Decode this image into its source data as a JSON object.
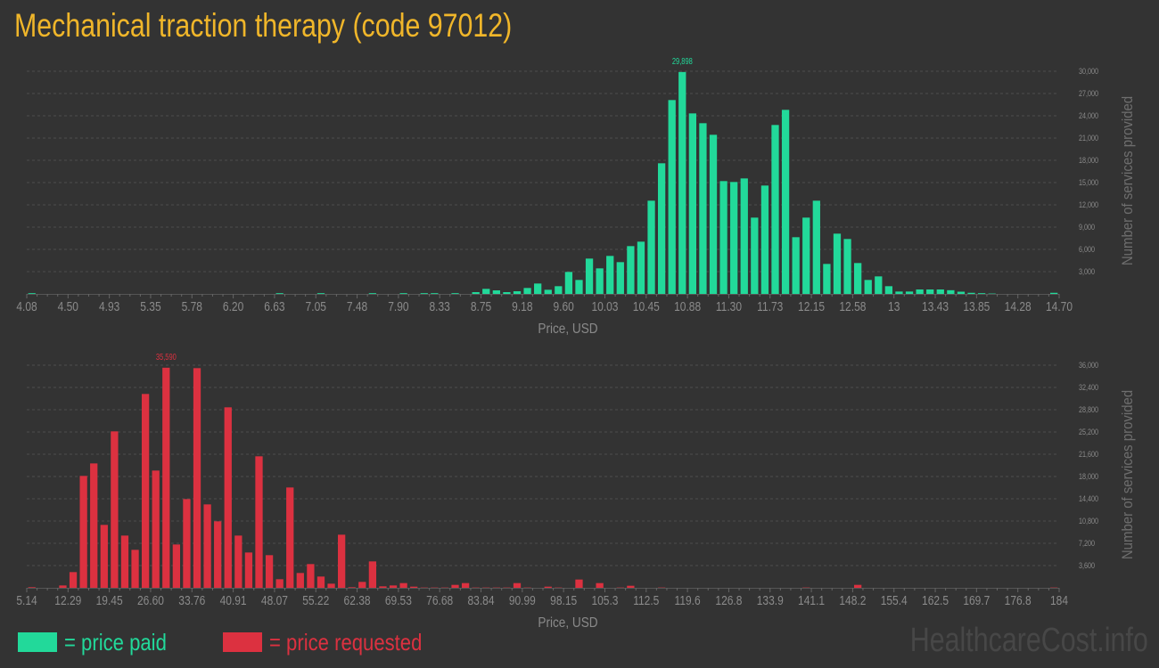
{
  "title": "Mechanical traction therapy (code 97012)",
  "colors": {
    "background": "#333333",
    "paid": "#22d99a",
    "requested": "#dc3140",
    "title": "#f0b62a",
    "axis_text": "#8a8a8a",
    "grid": "#4d4d4d"
  },
  "legend": {
    "paid": "= price paid",
    "requested": "= price requested"
  },
  "watermark": "HealthcareCost.info",
  "chart_data": [
    {
      "type": "bar",
      "series_key": "paid",
      "xlabel": "Price, USD",
      "ylabel": "Number of services provided",
      "x_range": [
        4.08,
        14.7
      ],
      "ylim": [
        0,
        30000
      ],
      "grid": true,
      "xtick_labels": [
        "4.08",
        "4.50",
        "4.93",
        "5.35",
        "5.78",
        "6.20",
        "6.63",
        "7.05",
        "7.48",
        "7.90",
        "8.33",
        "8.75",
        "9.18",
        "9.60",
        "10.03",
        "10.45",
        "10.88",
        "11.30",
        "11.73",
        "12.15",
        "12.58",
        "13",
        "13.43",
        "13.85",
        "14.28",
        "14.70"
      ],
      "ytick_labels": [
        "3,000",
        "6,000",
        "9,000",
        "12,000",
        "15,000",
        "18,000",
        "21,000",
        "24,000",
        "27,000",
        "30,000"
      ],
      "yticks": [
        3000,
        6000,
        9000,
        12000,
        15000,
        18000,
        21000,
        24000,
        27000,
        30000
      ],
      "peak_label": "29,898",
      "values": [
        100,
        0,
        0,
        0,
        0,
        0,
        0,
        0,
        0,
        0,
        0,
        0,
        0,
        0,
        0,
        0,
        0,
        0,
        0,
        0,
        0,
        0,
        0,
        0,
        100,
        0,
        0,
        0,
        100,
        0,
        0,
        0,
        0,
        100,
        0,
        0,
        100,
        0,
        100,
        100,
        0,
        100,
        0,
        240,
        680,
        480,
        240,
        360,
        800,
        1400,
        560,
        1040,
        2960,
        1880,
        4760,
        3440,
        5120,
        4280,
        6440,
        7040,
        12560,
        17600,
        26120,
        29898,
        24320,
        23000,
        21440,
        15200,
        15080,
        15560,
        10280,
        14600,
        22760,
        24800,
        7640,
        10280,
        12560,
        4040,
        8120,
        7400,
        4160,
        1880,
        2360,
        1040,
        320,
        320,
        600,
        600,
        600,
        500,
        300,
        150,
        100,
        50,
        0,
        0,
        0,
        0,
        0,
        150
      ]
    },
    {
      "type": "bar",
      "series_key": "requested",
      "xlabel": "Price, USD",
      "ylabel": "Number of services provided",
      "x_range": [
        5.14,
        184
      ],
      "ylim": [
        0,
        36000
      ],
      "grid": true,
      "xtick_labels": [
        "5.14",
        "12.29",
        "19.45",
        "26.60",
        "33.76",
        "40.91",
        "48.07",
        "55.22",
        "62.38",
        "69.53",
        "76.68",
        "83.84",
        "90.99",
        "98.15",
        "105.3",
        "112.5",
        "119.6",
        "126.8",
        "133.9",
        "141.1",
        "148.2",
        "155.4",
        "162.5",
        "169.7",
        "176.8",
        "184"
      ],
      "ytick_labels": [
        "3,600",
        "7,200",
        "10,800",
        "14,400",
        "18,000",
        "21,600",
        "25,200",
        "28,800",
        "32,400",
        "36,000"
      ],
      "yticks": [
        3600,
        7200,
        10800,
        14400,
        18000,
        21600,
        25200,
        28800,
        32400,
        36000
      ],
      "peak_label": "35,590",
      "values": [
        100,
        0,
        0,
        384,
        2544,
        18096,
        20112,
        10176,
        25296,
        8448,
        6144,
        31344,
        18960,
        35590,
        7008,
        14352,
        35520,
        13488,
        10752,
        29184,
        8448,
        5712,
        21264,
        5280,
        1392,
        16224,
        2400,
        3840,
        1824,
        672,
        8592,
        96,
        960,
        4272,
        240,
        384,
        768,
        192,
        48,
        48,
        48,
        480,
        768,
        48,
        48,
        48,
        48,
        768,
        48,
        0,
        192,
        48,
        0,
        1344,
        0,
        768,
        0,
        48,
        336,
        0,
        0,
        48,
        0,
        0,
        0,
        0,
        0,
        0,
        0,
        0,
        0,
        0,
        0,
        0,
        0,
        48,
        0,
        0,
        0,
        0,
        480,
        0,
        0,
        0,
        0,
        0,
        0,
        0,
        0,
        0,
        0,
        0,
        0,
        0,
        0,
        0,
        0,
        0,
        0,
        48
      ]
    }
  ]
}
